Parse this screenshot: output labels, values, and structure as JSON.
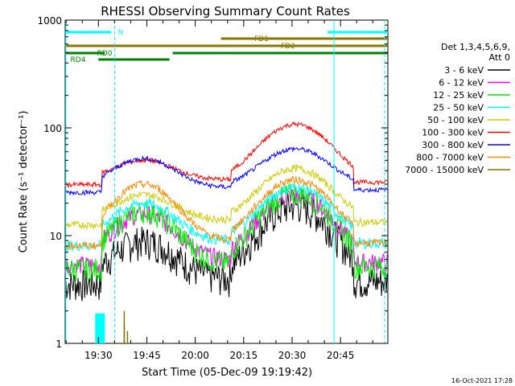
{
  "chart_data": {
    "type": "line",
    "title": "RHESSI Observing Summary Count Rates",
    "xlabel": "Start Time (05-Dec-09 19:19:42)",
    "ylabel": "Count Rate (s⁻¹ detector⁻¹)",
    "y_scale": "log",
    "ylim": [
      1,
      1000
    ],
    "y_tick_labels": [
      "1",
      "10",
      "100",
      "1000"
    ],
    "xlim": [
      "19:19:42",
      "20:59:40"
    ],
    "x_tick_labels": [
      "19:30",
      "19:45",
      "20:00",
      "20:15",
      "20:30",
      "20:45"
    ],
    "legend": {
      "position": "right",
      "header": [
        "Det 1,3,4,5,6,9,",
        "Att 0"
      ],
      "entries": [
        {
          "label": "3 - 6 keV",
          "color": "#000000"
        },
        {
          "label": "6 - 12 keV",
          "color": "#ff00ff"
        },
        {
          "label": "12 - 25 keV",
          "color": "#00ee00"
        },
        {
          "label": "25 - 50 keV",
          "color": "#00ffff"
        },
        {
          "label": "50 - 100 keV",
          "color": "#cccc00"
        },
        {
          "label": "100 - 300 keV",
          "color": "#ff0000"
        },
        {
          "label": "300 - 800 keV",
          "color": "#0000ff"
        },
        {
          "label": "800 - 7000 keV",
          "color": "#ff8800"
        },
        {
          "label": "7000 - 15000 keV",
          "color": "#887700"
        }
      ]
    },
    "flags": [
      {
        "label": "N",
        "color": "#00ffff"
      },
      {
        "label": "FD1",
        "color": "#887700"
      },
      {
        "label": "FD2",
        "color": "#887700"
      },
      {
        "label": "RD0",
        "color": "#008000"
      },
      {
        "label": "RD4",
        "color": "#008000"
      }
    ],
    "timestamp": "16-Oct-2021 17:28",
    "series": [
      {
        "name": "3 - 6 keV",
        "color": "#000000"
      },
      {
        "name": "6 - 12 keV",
        "color": "#ff00ff"
      },
      {
        "name": "12 - 25 keV",
        "color": "#00ee00"
      },
      {
        "name": "25 - 50 keV",
        "color": "#00ffff"
      },
      {
        "name": "50 - 100 keV",
        "color": "#cccc00"
      },
      {
        "name": "100 - 300 keV",
        "color": "#ff0000"
      },
      {
        "name": "300 - 800 keV",
        "color": "#0000ff"
      },
      {
        "name": "800 - 7000 keV",
        "color": "#ff8800"
      },
      {
        "name": "7000 - 15000 keV",
        "color": "#887700"
      }
    ]
  }
}
